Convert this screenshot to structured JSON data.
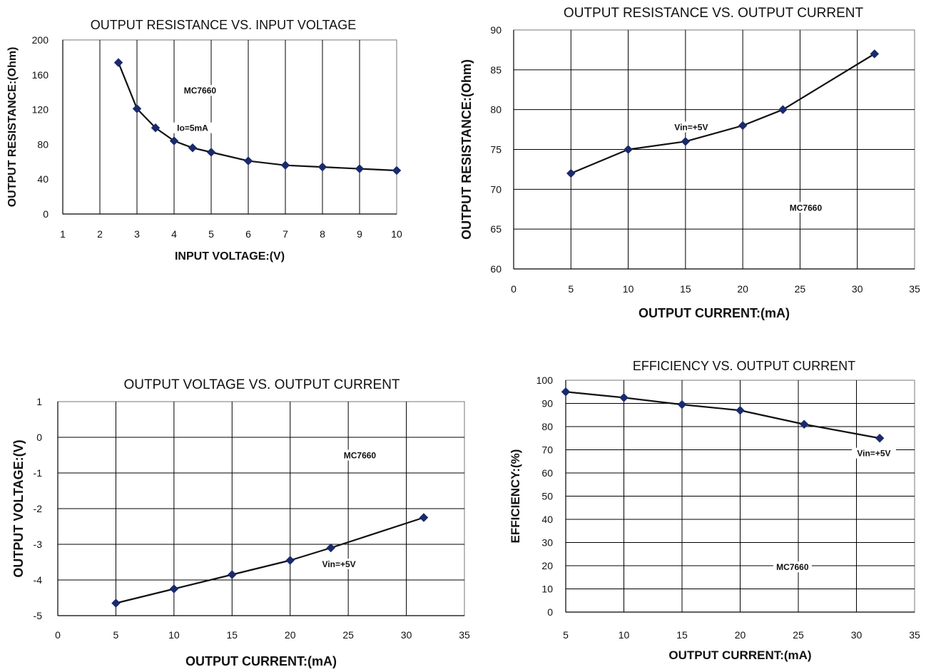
{
  "colors": {
    "series": "#1a2a6c",
    "line": "#111111",
    "grid": "#000000"
  },
  "chart_data": [
    {
      "type": "line",
      "title": "OUTPUT RESISTANCE VS. INPUT VOLTAGE",
      "xlabel": "INPUT VOLTAGE:(V)",
      "ylabel": "OUTPUT RESISTANCE:(Ohm)",
      "xlim": [
        1,
        10
      ],
      "ylim": [
        0,
        200
      ],
      "xticks": [
        "1",
        "2",
        "3",
        "4",
        "5",
        "6",
        "7",
        "8",
        "9",
        "10"
      ],
      "yticks": [
        "0",
        "40",
        "80",
        "120",
        "160",
        "200"
      ],
      "grid": "vertical-only",
      "annotations": [
        {
          "text": "MC7660",
          "x": 4.7,
          "y": 140
        },
        {
          "text": "Io=5mA",
          "x": 4.5,
          "y": 97
        }
      ],
      "series": [
        {
          "x": [
            2.5,
            3,
            3.5,
            4,
            4.5,
            5,
            6,
            7,
            8,
            9,
            10
          ],
          "y": [
            174,
            121,
            99,
            84,
            76,
            71,
            61,
            56,
            54,
            52,
            50
          ]
        }
      ]
    },
    {
      "type": "line",
      "title": "OUTPUT RESISTANCE VS. OUTPUT CURRENT",
      "xlabel": "OUTPUT CURRENT:(mA)",
      "ylabel": "OUTPUT RESISTANCE:(Ohm)",
      "xlim": [
        0,
        35
      ],
      "ylim": [
        60,
        90
      ],
      "xticks": [
        "0",
        "5",
        "10",
        "15",
        "20",
        "25",
        "30",
        "35"
      ],
      "yticks": [
        "60",
        "65",
        "70",
        "75",
        "80",
        "85",
        "90"
      ],
      "grid": "both",
      "annotations": [
        {
          "text": "Vin=+5V",
          "x": 15.5,
          "y": 77.6
        },
        {
          "text": "MC7660",
          "x": 25.5,
          "y": 67.5
        }
      ],
      "series": [
        {
          "x": [
            5,
            10,
            15,
            20,
            23.5,
            31.5
          ],
          "y": [
            72,
            75,
            76,
            78,
            80,
            87
          ]
        }
      ]
    },
    {
      "type": "line",
      "title": "OUTPUT VOLTAGE VS. OUTPUT CURRENT",
      "xlabel": "OUTPUT CURRENT:(mA)",
      "ylabel": "OUTPUT VOLTAGE:(V)",
      "xlim": [
        0,
        35
      ],
      "ylim": [
        -5,
        1
      ],
      "xticks": [
        "0",
        "5",
        "10",
        "15",
        "20",
        "25",
        "30",
        "35"
      ],
      "yticks": [
        "-5",
        "-4",
        "-3",
        "-2",
        "-1",
        "0",
        "1"
      ],
      "grid": "both",
      "annotations": [
        {
          "text": "MC7660",
          "x": 26,
          "y": -0.55
        },
        {
          "text": "Vin=+5V",
          "x": 24.2,
          "y": -3.6
        }
      ],
      "series": [
        {
          "x": [
            5,
            10,
            15,
            20,
            23.5,
            31.5
          ],
          "y": [
            -4.65,
            -4.25,
            -3.85,
            -3.45,
            -3.1,
            -2.25
          ]
        }
      ]
    },
    {
      "type": "line",
      "title": "EFFICIENCY VS. OUTPUT CURRENT",
      "xlabel": "OUTPUT CURRENT:(mA)",
      "ylabel": "EFFICIENCY:(%)",
      "xlim": [
        5,
        35
      ],
      "ylim": [
        0,
        100
      ],
      "xticks": [
        "5",
        "10",
        "15",
        "20",
        "25",
        "30",
        "35"
      ],
      "yticks": [
        "0",
        "10",
        "20",
        "30",
        "40",
        "50",
        "60",
        "70",
        "80",
        "90",
        "100"
      ],
      "grid": "both",
      "annotations": [
        {
          "text": "Vin=+5V",
          "x": 31.5,
          "y": 67.8
        },
        {
          "text": "MC7660",
          "x": 24.5,
          "y": 18.7
        }
      ],
      "series": [
        {
          "x": [
            5,
            10,
            15,
            20,
            25.5,
            32
          ],
          "y": [
            95,
            92.5,
            89.5,
            87,
            81,
            75
          ]
        }
      ]
    }
  ]
}
